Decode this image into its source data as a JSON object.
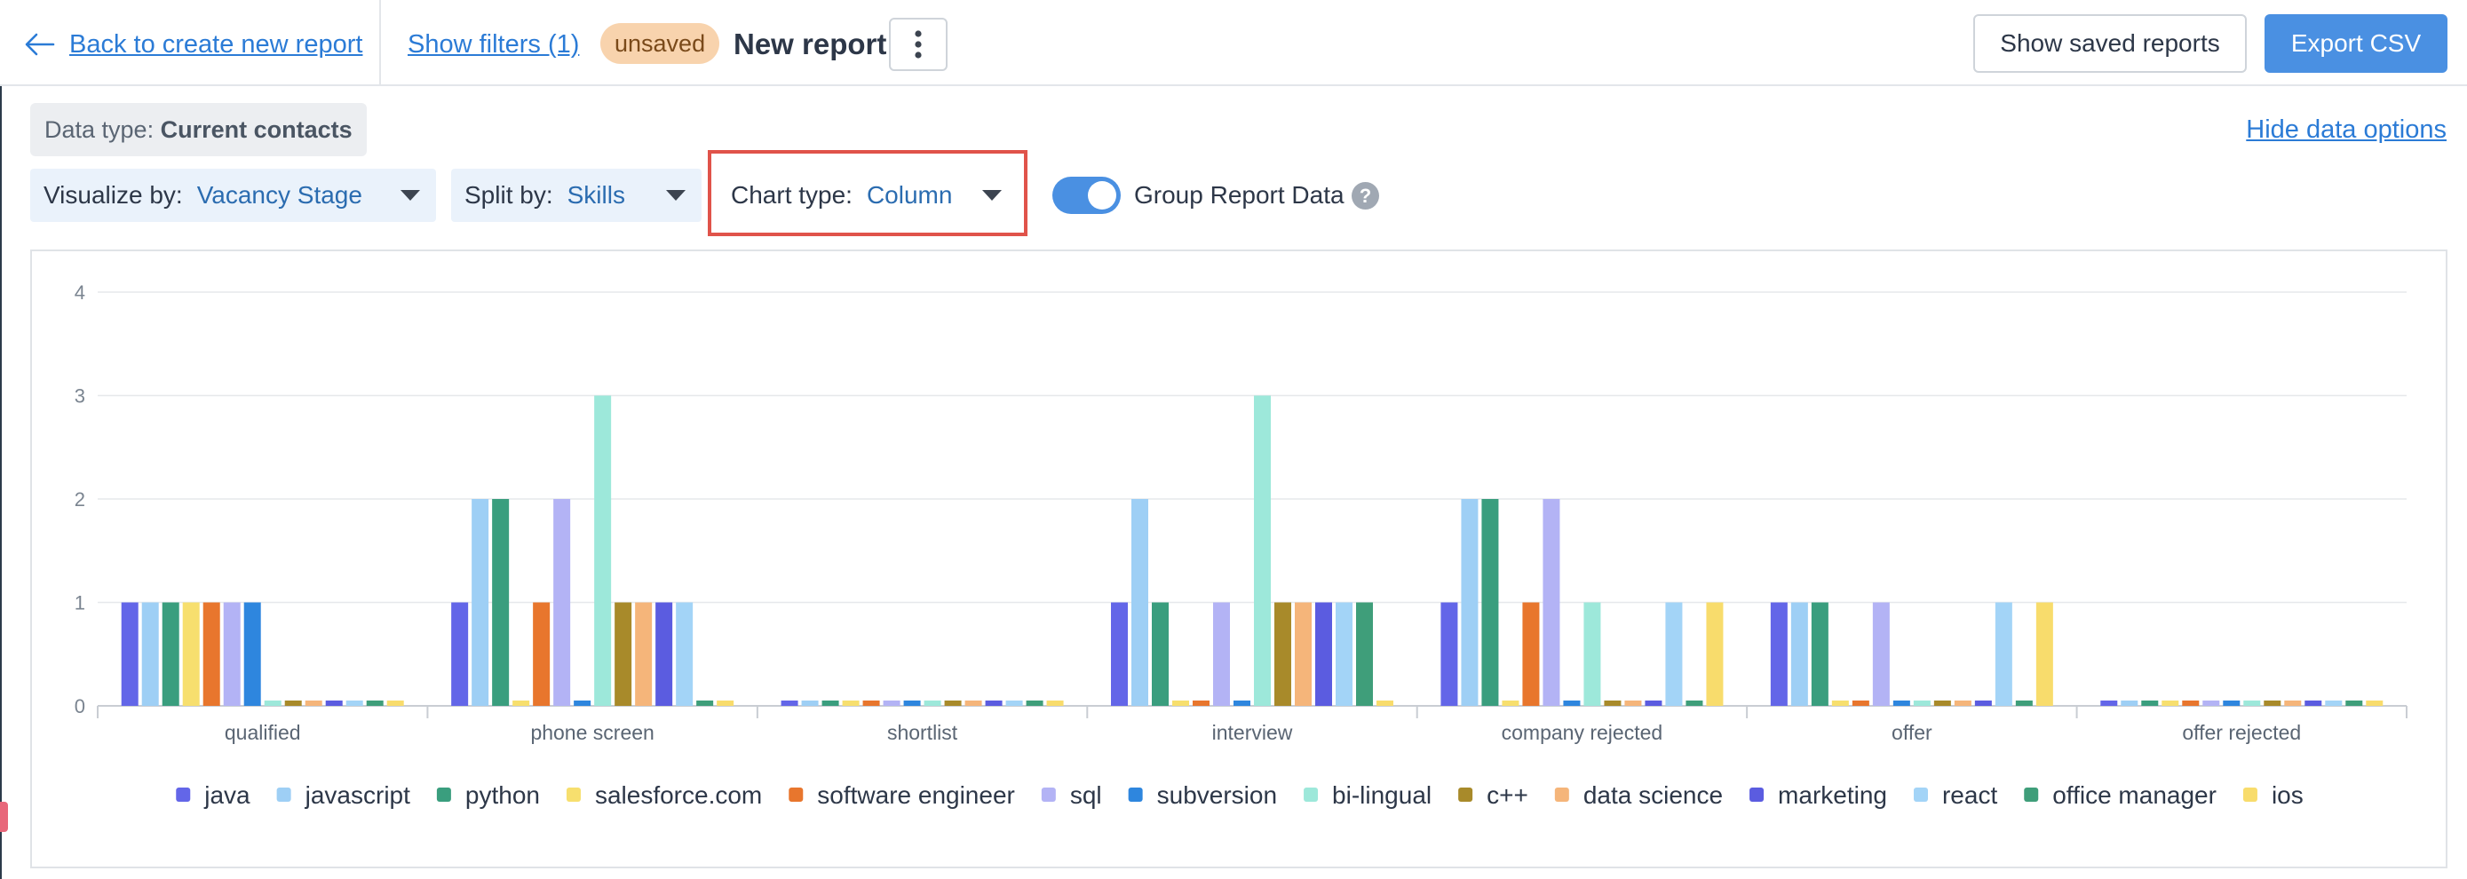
{
  "header": {
    "back_label": "Back to create new report",
    "filters_label": "Show filters (1)",
    "status_badge": "unsaved",
    "title": "New report",
    "saved_reports_label": "Show saved reports",
    "export_label": "Export CSV"
  },
  "options": {
    "data_type_label": "Data type:",
    "data_type_value": "Current contacts",
    "hide_options_label": "Hide data options",
    "visualize_label": "Visualize by:",
    "visualize_value": "Vacancy Stage",
    "split_label": "Split by:",
    "split_value": "Skills",
    "chart_type_label": "Chart type:",
    "chart_type_value": "Column",
    "group_toggle_label": "Group Report Data",
    "group_toggle_on": true,
    "help_symbol": "?"
  },
  "chart_data": {
    "type": "bar",
    "ylim": [
      0,
      4
    ],
    "yticks": [
      0,
      1,
      2,
      3,
      4
    ],
    "grid": true,
    "legend_position": "bottom",
    "categories": [
      "qualified",
      "phone screen",
      "shortlist",
      "interview",
      "company rejected",
      "offer",
      "offer rejected"
    ],
    "series": [
      {
        "name": "java",
        "color": "#6366e8",
        "values": [
          1,
          1,
          0,
          1,
          1,
          1,
          0
        ]
      },
      {
        "name": "javascript",
        "color": "#9ecff5",
        "values": [
          1,
          2,
          0,
          2,
          2,
          1,
          0
        ]
      },
      {
        "name": "python",
        "color": "#3a9e7e",
        "values": [
          1,
          2,
          0,
          1,
          2,
          1,
          0
        ]
      },
      {
        "name": "salesforce.com",
        "color": "#f7df6e",
        "values": [
          1,
          0,
          0,
          0,
          0,
          0,
          0
        ]
      },
      {
        "name": "software engineer",
        "color": "#e8762d",
        "values": [
          1,
          1,
          0,
          0,
          1,
          0,
          0
        ]
      },
      {
        "name": "sql",
        "color": "#b3b3f5",
        "values": [
          1,
          2,
          0,
          1,
          2,
          1,
          0
        ]
      },
      {
        "name": "subversion",
        "color": "#2e86de",
        "values": [
          1,
          0,
          0,
          0,
          0,
          0,
          0
        ]
      },
      {
        "name": "bi-lingual",
        "color": "#9de8da",
        "values": [
          0,
          3,
          0,
          3,
          1,
          0,
          0
        ]
      },
      {
        "name": "c++",
        "color": "#a88a2a",
        "values": [
          0,
          1,
          0,
          1,
          0,
          0,
          0
        ]
      },
      {
        "name": "data science",
        "color": "#f5b57a",
        "values": [
          0,
          1,
          0,
          1,
          0,
          0,
          0
        ]
      },
      {
        "name": "marketing",
        "color": "#5b5ce0",
        "values": [
          0,
          1,
          0,
          1,
          0,
          0,
          0
        ]
      },
      {
        "name": "react",
        "color": "#a3d4f7",
        "values": [
          0,
          1,
          0,
          1,
          1,
          1,
          0
        ]
      },
      {
        "name": "office manager",
        "color": "#3f9e7a",
        "values": [
          0,
          0,
          0,
          1,
          0,
          0,
          0
        ]
      },
      {
        "name": "ios",
        "color": "#f8dc6c",
        "values": [
          0,
          0,
          0,
          0,
          1,
          1,
          0
        ]
      }
    ]
  }
}
